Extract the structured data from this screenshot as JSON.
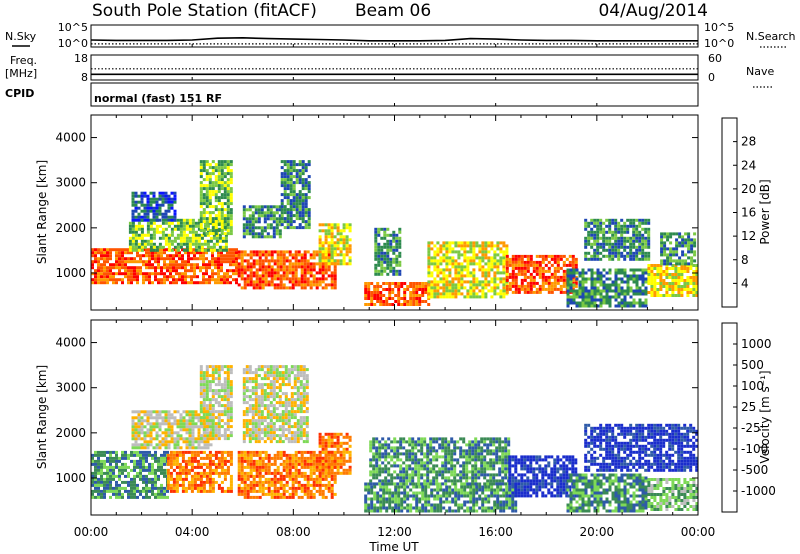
{
  "header": {
    "title": "South Pole Station (fitACF)",
    "beam": "Beam 06",
    "date": "04/Aug/2014"
  },
  "side_labels": {
    "nsky": "N.Sky",
    "freq_line1": "Freq.",
    "freq_line2": "[MHz]",
    "cpid": "CPID",
    "nsearch": "N.Search",
    "nave": "Nave"
  },
  "mode_text": "normal (fast) 151 RF",
  "chart_data": [
    {
      "type": "line",
      "name": "noise-panel",
      "y_left_ticks": [
        "10^5",
        "10^0"
      ],
      "y_right_ticks": [
        "10^5",
        "10^0"
      ],
      "series": [
        {
          "label": "N.Sky",
          "style": "solid",
          "x_hours": [
            0,
            1,
            2,
            3,
            4,
            5,
            6,
            7,
            8,
            9,
            10,
            11,
            12,
            13,
            14,
            15,
            16,
            17,
            18,
            19,
            20,
            21,
            22,
            23,
            24
          ],
          "values_log10": [
            1.6,
            1.5,
            1.5,
            1.5,
            1.6,
            2.0,
            2.1,
            1.9,
            1.8,
            1.7,
            1.6,
            1.4,
            1.4,
            1.4,
            1.5,
            1.9,
            1.8,
            1.6,
            1.5,
            1.5,
            1.4,
            1.4,
            1.4,
            1.4,
            1.4
          ]
        },
        {
          "label": "N.Search",
          "style": "dotted",
          "x_hours": [
            0,
            4,
            8,
            12,
            16,
            20,
            24
          ],
          "values_log10": [
            0.7,
            0.7,
            0.7,
            0.7,
            0.7,
            0.7,
            0.7
          ]
        }
      ]
    },
    {
      "type": "line",
      "name": "freq-nave-panel",
      "y_left_ticks": [
        "18",
        "8"
      ],
      "y_right_ticks": [
        "60",
        "0"
      ],
      "series": [
        {
          "label": "Freq",
          "style": "solid",
          "x_hours": [
            0,
            24
          ],
          "values": [
            10.3,
            10.3
          ]
        },
        {
          "label": "Nave",
          "style": "dotted",
          "x_hours": [
            0,
            24
          ],
          "values": [
            27,
            27
          ]
        }
      ]
    },
    {
      "type": "heatmap",
      "name": "power-panel",
      "ylabel": "Slant Range [km]",
      "ylim": [
        180,
        4500
      ],
      "yticks": [
        1000,
        2000,
        3000,
        4000
      ],
      "colorbar": {
        "label": "Power [dB]",
        "ticks": [
          "4",
          "8",
          "12",
          "16",
          "20",
          "24",
          "28"
        ],
        "colors": [
          "#0a14ff",
          "#1e46b4",
          "#2d8a4e",
          "#7ac943",
          "#ffff00",
          "#ff9900",
          "#ff5500",
          "#ff0000"
        ]
      },
      "regions": [
        {
          "t0": 0.0,
          "t1": 5.7,
          "r0": 800,
          "r1": 1550,
          "level": 6
        },
        {
          "t0": 1.5,
          "t1": 5.3,
          "r0": 1500,
          "r1": 2200,
          "level": 3
        },
        {
          "t0": 1.6,
          "t1": 3.3,
          "r0": 2200,
          "r1": 2800,
          "level": 1
        },
        {
          "t0": 4.3,
          "t1": 5.6,
          "r0": 1900,
          "r1": 3500,
          "level": 3
        },
        {
          "t0": 5.8,
          "t1": 9.6,
          "r0": 700,
          "r1": 1500,
          "level": 6
        },
        {
          "t0": 6.0,
          "t1": 7.5,
          "r0": 1800,
          "r1": 2500,
          "level": 2
        },
        {
          "t0": 7.5,
          "t1": 8.6,
          "r0": 2000,
          "r1": 3500,
          "level": 2
        },
        {
          "t0": 9.0,
          "t1": 10.2,
          "r0": 1200,
          "r1": 2100,
          "level": 4
        },
        {
          "t0": 10.8,
          "t1": 13.3,
          "r0": 300,
          "r1": 800,
          "level": 6
        },
        {
          "t0": 11.2,
          "t1": 12.2,
          "r0": 1000,
          "r1": 2000,
          "level": 2
        },
        {
          "t0": 13.3,
          "t1": 16.5,
          "r0": 500,
          "r1": 1700,
          "level": 4
        },
        {
          "t0": 16.4,
          "t1": 19.2,
          "r0": 600,
          "r1": 1400,
          "level": 6
        },
        {
          "t0": 18.8,
          "t1": 22.0,
          "r0": 300,
          "r1": 1100,
          "level": 2
        },
        {
          "t0": 19.5,
          "t1": 22.0,
          "r0": 1300,
          "r1": 2200,
          "level": 2
        },
        {
          "t0": 22.0,
          "t1": 23.9,
          "r0": 500,
          "r1": 1200,
          "level": 4
        },
        {
          "t0": 22.5,
          "t1": 23.9,
          "r0": 1200,
          "r1": 1900,
          "level": 2
        }
      ]
    },
    {
      "type": "heatmap",
      "name": "velocity-panel",
      "ylabel": "Slant Range [km]",
      "ylim": [
        180,
        4500
      ],
      "yticks": [
        1000,
        2000,
        3000,
        4000
      ],
      "colorbar": {
        "label": "Velocity [m s⁻¹]",
        "ticks": [
          "1000",
          "500",
          "100",
          "25",
          "-25",
          "-100",
          "-500",
          "-1000"
        ],
        "colors": [
          "#1a2dcc",
          "#2e5aa8",
          "#3b8a55",
          "#7ed957",
          "#bdbdbd",
          "#ffb300",
          "#ff7a00",
          "#ff3000",
          "#ff0000"
        ]
      },
      "regions": [
        {
          "t0": 0.0,
          "t1": 3.0,
          "r0": 600,
          "r1": 1600,
          "level": 2
        },
        {
          "t0": 3.0,
          "t1": 5.5,
          "r0": 700,
          "r1": 1600,
          "level": 6
        },
        {
          "t0": 1.6,
          "t1": 4.8,
          "r0": 1700,
          "r1": 2500,
          "level": 4
        },
        {
          "t0": 4.3,
          "t1": 5.6,
          "r0": 1900,
          "r1": 3500,
          "level": 4
        },
        {
          "t0": 5.8,
          "t1": 9.6,
          "r0": 600,
          "r1": 1600,
          "level": 6
        },
        {
          "t0": 9.0,
          "t1": 10.2,
          "r0": 1100,
          "r1": 2000,
          "level": 6
        },
        {
          "t0": 6.0,
          "t1": 8.6,
          "r0": 1800,
          "r1": 3500,
          "level": 4
        },
        {
          "t0": 10.8,
          "t1": 16.8,
          "r0": 300,
          "r1": 900,
          "level": 2
        },
        {
          "t0": 11.0,
          "t1": 16.5,
          "r0": 900,
          "r1": 1900,
          "level": 2
        },
        {
          "t0": 16.5,
          "t1": 19.2,
          "r0": 600,
          "r1": 1500,
          "level": 0
        },
        {
          "t0": 18.8,
          "t1": 22.0,
          "r0": 300,
          "r1": 1100,
          "level": 2
        },
        {
          "t0": 19.5,
          "t1": 23.9,
          "r0": 1200,
          "r1": 2200,
          "level": 0
        },
        {
          "t0": 22.0,
          "t1": 23.9,
          "r0": 300,
          "r1": 1000,
          "level": 3
        }
      ]
    }
  ],
  "x_axis": {
    "label": "Time UT",
    "ticks": [
      "00:00",
      "04:00",
      "08:00",
      "12:00",
      "16:00",
      "20:00",
      "00:00"
    ],
    "range_hours": [
      0,
      24
    ]
  }
}
